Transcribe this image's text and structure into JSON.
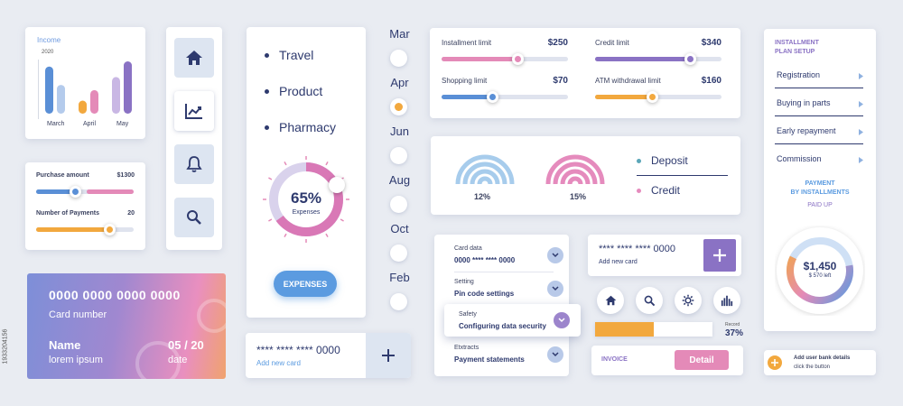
{
  "income": {
    "title": "Income",
    "year": "2020",
    "months": [
      "March",
      "April",
      "May"
    ],
    "bar_values": [
      [
        0.9,
        0.55
      ],
      [
        0.25,
        0.45
      ],
      [
        0.7,
        1.0
      ]
    ],
    "colors": {
      "blue": "#5a8fd6",
      "lightblue": "#b4cbec",
      "orange": "#f2a83e",
      "pink": "#e48ab8",
      "lilac": "#c9b7e4",
      "purple": "#8a72c4"
    }
  },
  "nav_icons": [
    "home-icon",
    "chart-icon",
    "bell-icon",
    "search-icon"
  ],
  "purchase": {
    "amount_label": "Purchase amount",
    "amount_value": "$1300",
    "amount_level": 0.4,
    "payments_label": "Number of Payments",
    "payments_value": "20",
    "payments_level": 0.75
  },
  "categories": {
    "items": [
      "Travel",
      "Product",
      "Pharmacy"
    ],
    "donut_percent": "65%",
    "donut_label": "Expenses",
    "donut_level": 0.65,
    "button": "EXPENSES"
  },
  "months_column": {
    "items": [
      "Mar",
      "Apr",
      "Jun",
      "Aug",
      "Oct",
      "Feb"
    ],
    "selected_index": 1
  },
  "card": {
    "number": "0000 0000 0000 0000",
    "number_label": "Card number",
    "name": "Name",
    "name_value": "lorem ipsum",
    "date": "05 / 20",
    "date_label": "date"
  },
  "add_card_1": {
    "masked": "**** **** **** 0000",
    "label": "Add new card"
  },
  "limits": [
    {
      "label": "Installment limit",
      "value": "$250",
      "level": 0.6,
      "color": "#e48ab8"
    },
    {
      "label": "Credit limit",
      "value": "$340",
      "level": 0.75,
      "color": "#8a72c4"
    },
    {
      "label": "Shopping limit",
      "value": "$70",
      "level": 0.4,
      "color": "#5a8fd6"
    },
    {
      "label": "ATM withdrawal limit",
      "value": "$160",
      "level": 0.45,
      "color": "#f2a83e"
    }
  ],
  "rates": {
    "deposit_percent": "12%",
    "credit_percent": "15%",
    "legend": [
      "Deposit",
      "Credit"
    ]
  },
  "settings": [
    {
      "title": "Card data",
      "value": "0000 **** **** 0000"
    },
    {
      "title": "Setting",
      "value": "Pin code settings"
    },
    {
      "title": "Safety",
      "value": "Configuring data security"
    },
    {
      "title": "Etxtracts",
      "value": "Payment statements"
    }
  ],
  "add_card_2": {
    "masked": "**** **** **** 0000",
    "label": "Add new card"
  },
  "quick_icons": [
    "home-icon",
    "search-icon",
    "gear-icon",
    "bar-chart-icon"
  ],
  "progress": {
    "label": "Record",
    "value": "37%",
    "level": 0.37
  },
  "invoice": {
    "label": "INVOICE",
    "button": "Detail"
  },
  "installment": {
    "title_line1": "INSTALLMENT",
    "title_line2": "PLAN SETUP",
    "menu": [
      "Registration",
      "Buying in parts",
      "Early repayment",
      "Commission"
    ],
    "payment_line1": "PAYMENT",
    "payment_line2": "BY INSTALLMENTS",
    "paid_up": "PAID UP",
    "amount": "$1,450",
    "left": "$ 570 left",
    "level": 0.6
  },
  "bank_details": {
    "line1": "Add user bank details",
    "line2": "click the button"
  },
  "watermark": {
    "id": "1933204156"
  }
}
